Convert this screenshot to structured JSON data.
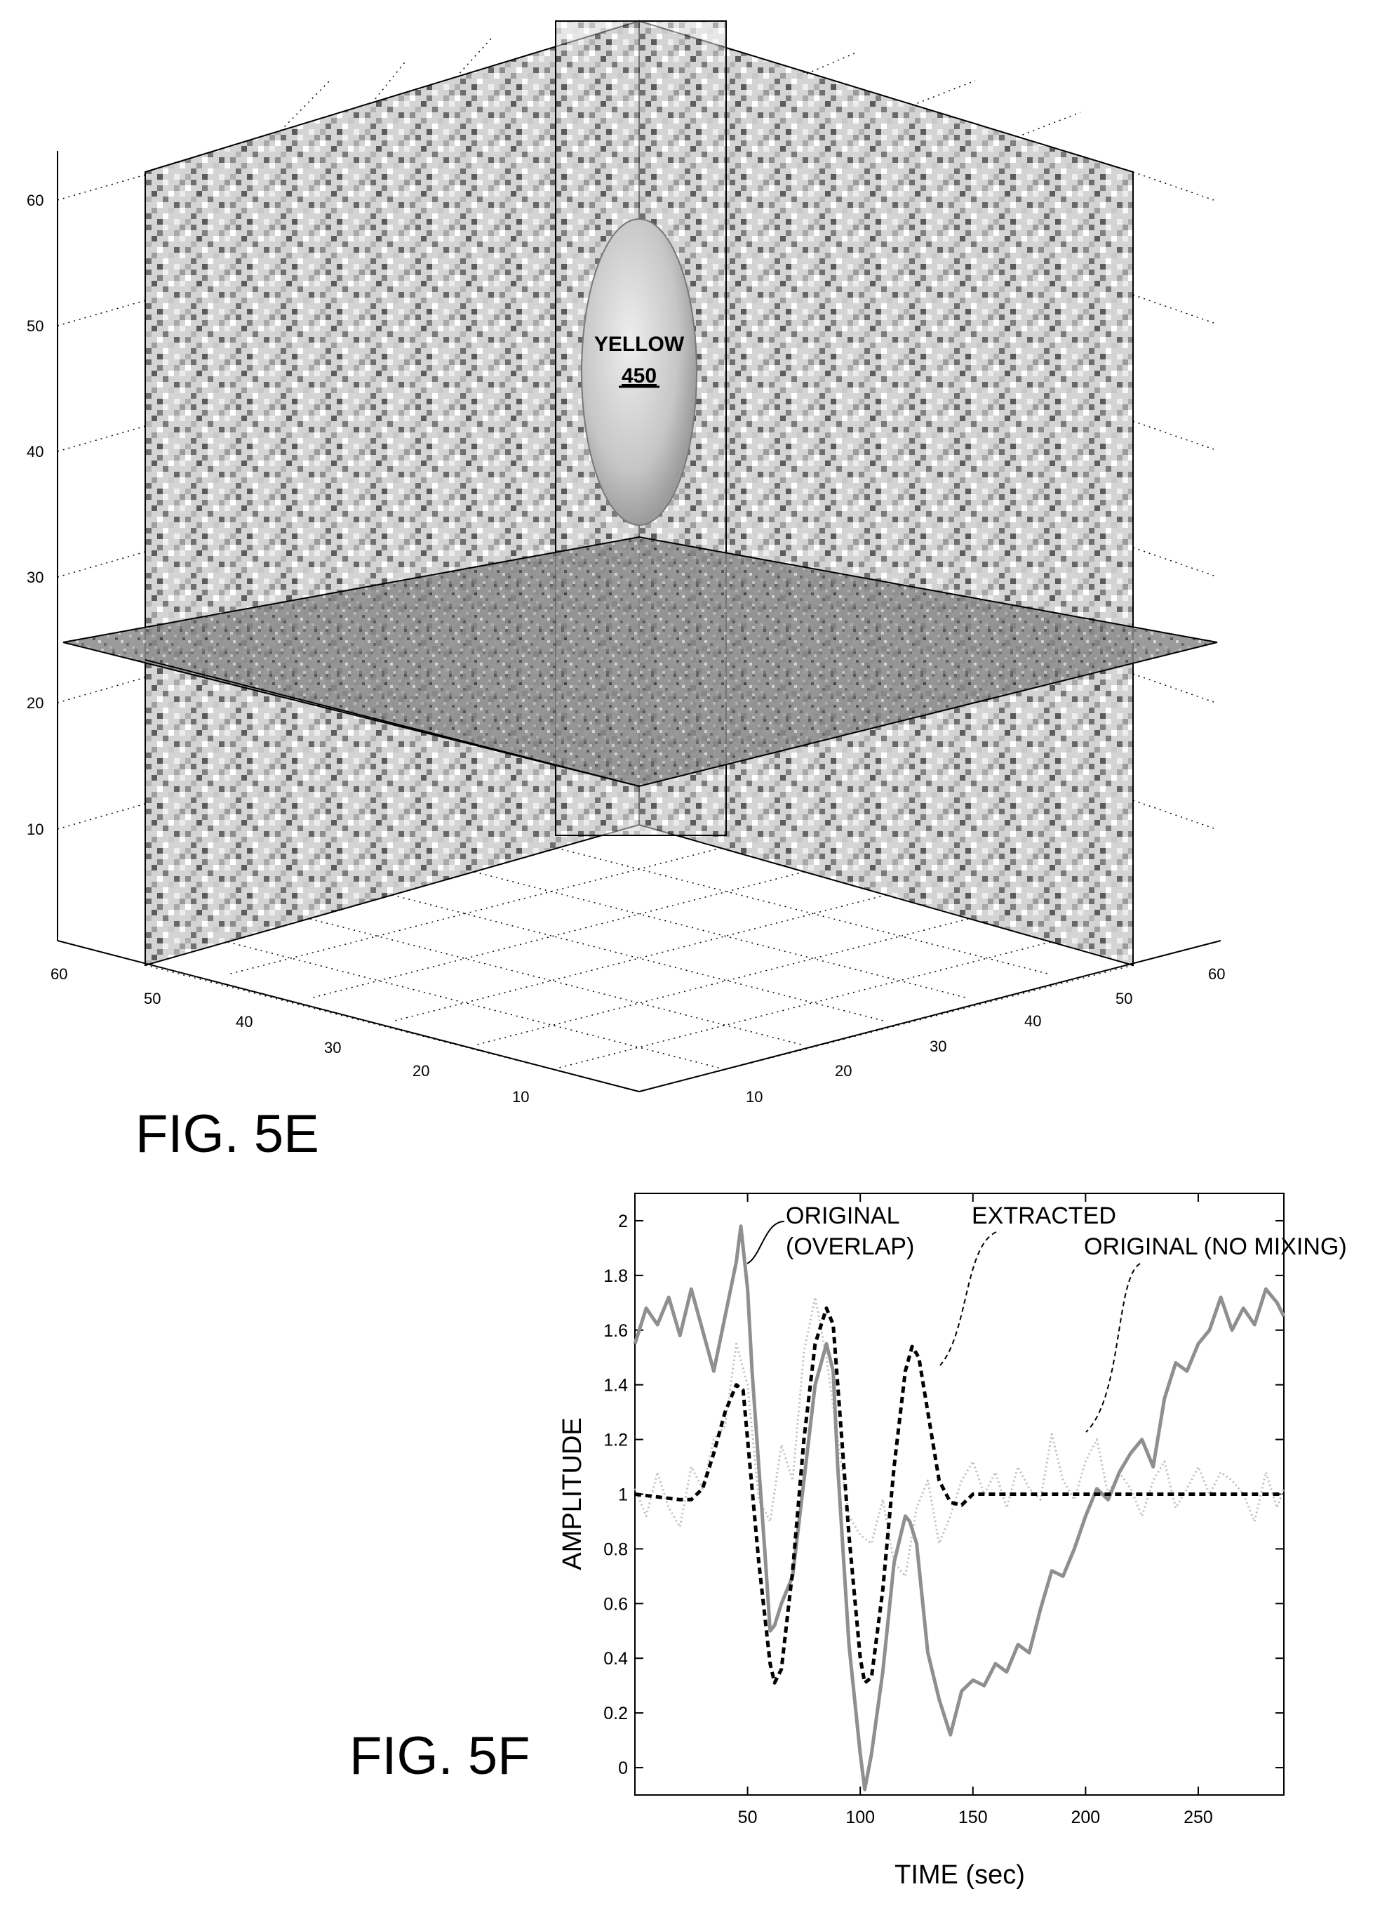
{
  "figures": {
    "fig_5e": {
      "label": "FIG. 5E",
      "annotation_name": "YELLOW",
      "annotation_ref": "450",
      "vertical_axis_ticks": [
        "10",
        "20",
        "30",
        "40",
        "50",
        "60"
      ],
      "left_floor_ticks": [
        "10",
        "20",
        "30",
        "40",
        "50",
        "60"
      ],
      "right_floor_ticks": [
        "10",
        "20",
        "30",
        "40",
        "50",
        "60"
      ]
    },
    "fig_5f": {
      "label": "FIG. 5F"
    }
  },
  "chart_data": {
    "type": "line",
    "title": "",
    "xlabel": "TIME (sec)",
    "ylabel": "AMPLITUDE",
    "xlim": [
      0,
      288
    ],
    "ylim": [
      -0.1,
      2.1
    ],
    "xticks": [
      50,
      100,
      150,
      200,
      250
    ],
    "yticks": [
      0,
      0.2,
      0.4,
      0.6,
      0.8,
      1,
      1.2,
      1.4,
      1.6,
      1.8,
      2
    ],
    "grid": false,
    "legend": "none",
    "series": [
      {
        "name": "ORIGINAL (OVERLAP)",
        "style": "solid",
        "color": "#8f8f8f",
        "x": [
          0,
          5,
          10,
          15,
          20,
          25,
          30,
          35,
          40,
          45,
          47,
          50,
          52,
          55,
          58,
          60,
          62,
          65,
          70,
          75,
          80,
          85,
          88,
          90,
          95,
          100,
          102,
          105,
          110,
          115,
          120,
          122,
          125,
          130,
          135,
          140,
          145,
          150,
          155,
          160,
          165,
          170,
          175,
          180,
          185,
          190,
          195,
          200,
          205,
          210,
          215,
          220,
          225,
          230,
          235,
          240,
          245,
          250,
          255,
          260,
          265,
          270,
          275,
          280,
          285,
          288
        ],
        "y": [
          1.55,
          1.68,
          1.62,
          1.72,
          1.58,
          1.75,
          1.6,
          1.45,
          1.65,
          1.85,
          1.98,
          1.75,
          1.45,
          1.1,
          0.75,
          0.5,
          0.52,
          0.6,
          0.7,
          1.05,
          1.4,
          1.55,
          1.45,
          1.1,
          0.45,
          0.05,
          -0.08,
          0.05,
          0.35,
          0.75,
          0.92,
          0.9,
          0.82,
          0.42,
          0.25,
          0.12,
          0.28,
          0.32,
          0.3,
          0.38,
          0.35,
          0.45,
          0.42,
          0.58,
          0.72,
          0.7,
          0.8,
          0.92,
          1.02,
          0.98,
          1.08,
          1.15,
          1.2,
          1.1,
          1.35,
          1.48,
          1.45,
          1.55,
          1.6,
          1.72,
          1.6,
          1.68,
          1.62,
          1.75,
          1.7,
          1.65
        ]
      },
      {
        "name": "EXTRACTED",
        "style": "dashed",
        "color": "#000000",
        "x": [
          0,
          10,
          20,
          25,
          30,
          35,
          40,
          45,
          48,
          50,
          55,
          60,
          62,
          65,
          70,
          75,
          80,
          85,
          88,
          90,
          95,
          100,
          102,
          105,
          110,
          115,
          120,
          123,
          126,
          130,
          135,
          140,
          145,
          150,
          200,
          288
        ],
        "y": [
          1,
          0.99,
          0.98,
          0.98,
          1.02,
          1.15,
          1.3,
          1.4,
          1.38,
          1.2,
          0.75,
          0.38,
          0.31,
          0.36,
          0.72,
          1.2,
          1.55,
          1.68,
          1.62,
          1.4,
          0.85,
          0.4,
          0.31,
          0.33,
          0.65,
          1.1,
          1.45,
          1.54,
          1.5,
          1.3,
          1.05,
          0.97,
          0.96,
          1.0,
          1.0,
          1.0
        ]
      },
      {
        "name": "ORIGINAL (NO MIXING)",
        "style": "dotted",
        "color": "#bdbdbd",
        "x": [
          0,
          5,
          10,
          15,
          20,
          25,
          30,
          35,
          40,
          45,
          50,
          55,
          60,
          65,
          70,
          75,
          80,
          85,
          90,
          95,
          100,
          105,
          110,
          115,
          120,
          125,
          130,
          135,
          140,
          145,
          150,
          155,
          160,
          165,
          170,
          175,
          180,
          185,
          190,
          195,
          200,
          205,
          210,
          215,
          220,
          225,
          230,
          235,
          240,
          245,
          250,
          255,
          260,
          265,
          270,
          275,
          280,
          285,
          288
        ],
        "y": [
          1.02,
          0.92,
          1.08,
          0.95,
          0.88,
          1.1,
          1.02,
          1.2,
          1.25,
          1.55,
          1.4,
          0.98,
          0.9,
          1.18,
          1.05,
          1.52,
          1.72,
          1.5,
          1.2,
          0.92,
          0.85,
          0.82,
          0.98,
          0.75,
          0.7,
          0.95,
          1.05,
          0.82,
          0.92,
          1.05,
          1.12,
          1.0,
          1.08,
          0.95,
          1.1,
          1.02,
          0.98,
          1.22,
          1.05,
          0.98,
          1.12,
          1.2,
          1.0,
          1.08,
          1.02,
          0.92,
          1.05,
          1.12,
          0.95,
          1.02,
          1.1,
          1.0,
          1.08,
          1.05,
          1.0,
          0.9,
          1.08,
          0.95,
          1.02
        ]
      }
    ],
    "annotations": [
      {
        "line1": "ORIGINAL",
        "line2": "(OVERLAP)"
      },
      {
        "line1": "EXTRACTED"
      },
      {
        "line1": "ORIGINAL (NO MIXING)"
      }
    ]
  }
}
